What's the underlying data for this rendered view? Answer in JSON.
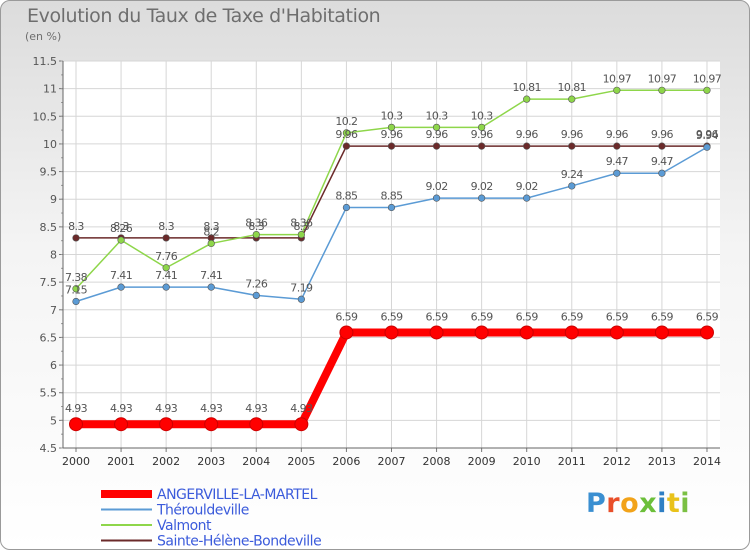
{
  "title": "Evolution du Taux de Taxe d'Habitation",
  "unit_label": "(en %)",
  "logo_text": "Proxiti",
  "chart_data": {
    "type": "line",
    "title": "Evolution du Taux de Taxe d'Habitation",
    "ylabel": "(en %)",
    "x": [
      "2000",
      "2001",
      "2002",
      "2003",
      "2004",
      "2005",
      "2006",
      "2007",
      "2008",
      "2009",
      "2010",
      "2011",
      "2012",
      "2013",
      "2014"
    ],
    "ylim": [
      4.5,
      11.5
    ],
    "yticks": [
      "4.5",
      "5",
      "5.5",
      "6",
      "6.5",
      "7",
      "7.5",
      "8",
      "8.5",
      "9",
      "9.5",
      "10",
      "10.5",
      "11",
      "11.5"
    ],
    "grid": true,
    "legend_position": "bottom-left",
    "series": [
      {
        "name": "ANGERVILLE-LA-MARTEL",
        "color": "#ff0000",
        "bold": true,
        "values": [
          4.93,
          4.93,
          4.93,
          4.93,
          4.93,
          4.93,
          6.59,
          6.59,
          6.59,
          6.59,
          6.59,
          6.59,
          6.59,
          6.59,
          6.59
        ],
        "labels": [
          "4.93",
          "4.93",
          "4.93",
          "4.93",
          "4.93",
          "4.93",
          "6.59",
          "6.59",
          "6.59",
          "6.59",
          "6.59",
          "6.59",
          "6.59",
          "6.59",
          "6.59"
        ]
      },
      {
        "name": "Thérouldeville",
        "color": "#5b9bd5",
        "values": [
          7.15,
          7.41,
          7.41,
          7.41,
          7.26,
          7.19,
          8.85,
          8.85,
          9.02,
          9.02,
          9.02,
          9.24,
          9.47,
          9.47,
          9.94
        ],
        "labels": [
          "7.15",
          "7.41",
          "7.41",
          "7.41",
          "7.26",
          "7.19",
          "8.85",
          "8.85",
          "9.02",
          "9.02",
          "9.02",
          "9.24",
          "9.47",
          "9.47",
          "9.94"
        ]
      },
      {
        "name": "Valmont",
        "color": "#8ed64a",
        "values": [
          7.38,
          8.26,
          7.76,
          8.2,
          8.36,
          8.36,
          10.2,
          10.3,
          10.3,
          10.3,
          10.81,
          10.81,
          10.97,
          10.97,
          10.97
        ],
        "labels": [
          "7.38",
          "8.26",
          "7.76",
          "8.2",
          "8.36",
          "8.36",
          "10.2",
          "10.3",
          "10.3",
          "10.3",
          "10.81",
          "10.81",
          "10.97",
          "10.97",
          "10.97"
        ]
      },
      {
        "name": "Sainte-Hélène-Bondeville",
        "color": "#6b2a2a",
        "values": [
          8.3,
          8.3,
          8.3,
          8.3,
          8.3,
          8.3,
          9.96,
          9.96,
          9.96,
          9.96,
          9.96,
          9.96,
          9.96,
          9.96,
          9.96
        ],
        "labels": [
          "8.3",
          "8.3",
          "8.3",
          "8.3",
          "8.3",
          "8.3",
          "9.96",
          "9.96",
          "9.96",
          "9.96",
          "9.96",
          "9.96",
          "9.96",
          "9.96",
          "9.96"
        ]
      }
    ]
  }
}
